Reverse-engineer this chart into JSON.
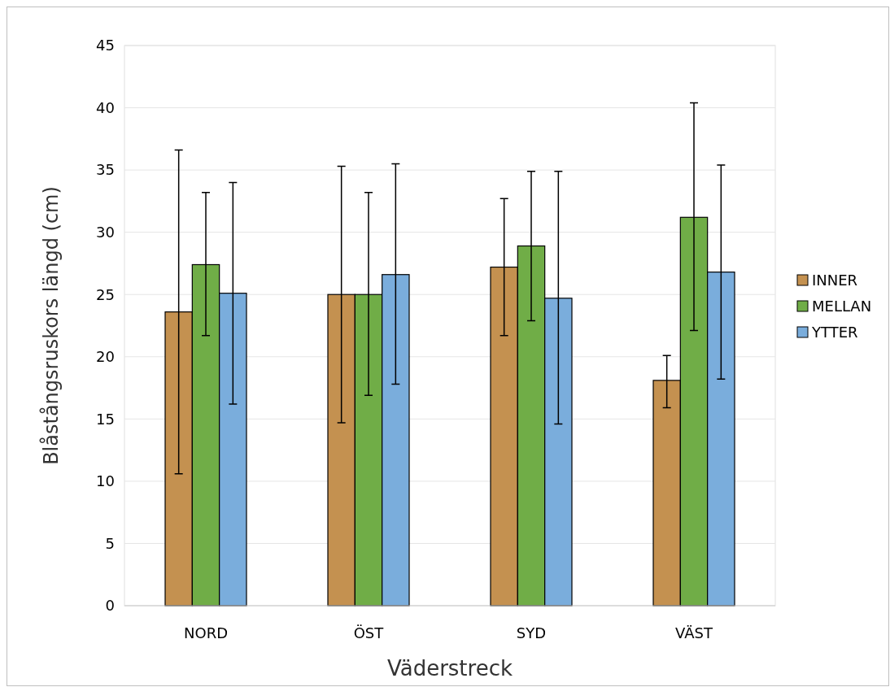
{
  "chart_data": {
    "type": "bar",
    "xlabel": "Väderstreck",
    "ylabel": "Blåstångsruskors längd  (cm)",
    "categories": [
      "NORD",
      "ÖST",
      "SYD",
      "VÄST"
    ],
    "series": [
      {
        "name": "INNER",
        "color": "#c49150",
        "values": [
          23.6,
          25.0,
          27.2,
          18.1
        ],
        "errors": [
          [
            10.6,
            36.6
          ],
          [
            14.7,
            35.3
          ],
          [
            21.7,
            32.7
          ],
          [
            15.9,
            20.1
          ]
        ]
      },
      {
        "name": "MELLAN",
        "color": "#70ad47",
        "values": [
          27.4,
          25.0,
          28.9,
          31.2
        ],
        "errors": [
          [
            21.7,
            33.2
          ],
          [
            16.9,
            33.2
          ],
          [
            22.9,
            34.9
          ],
          [
            22.1,
            40.4
          ]
        ]
      },
      {
        "name": "YTTER",
        "color": "#7aaddc",
        "values": [
          25.1,
          26.6,
          24.7,
          26.8
        ],
        "errors": [
          [
            16.2,
            34.0
          ],
          [
            17.8,
            35.5
          ],
          [
            14.6,
            34.9
          ],
          [
            18.2,
            35.4
          ]
        ]
      }
    ],
    "ylim": [
      0,
      45
    ],
    "yticks": [
      0,
      5,
      10,
      15,
      20,
      25,
      30,
      35,
      40,
      45
    ],
    "grid": "y",
    "legend": "right"
  }
}
